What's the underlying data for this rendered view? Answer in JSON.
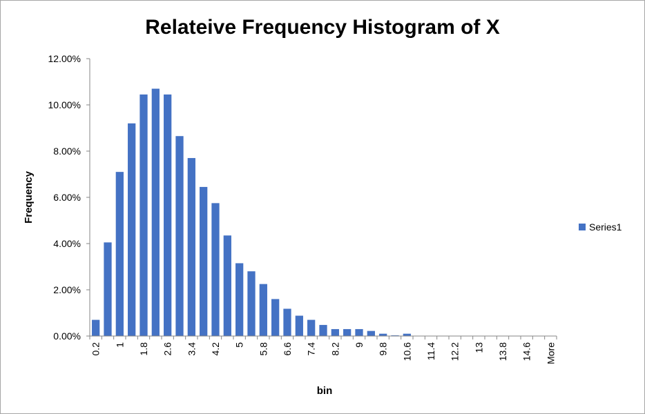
{
  "chart_data": {
    "type": "bar",
    "title": "Relateive Frequency Histogram of X",
    "xlabel": "bin",
    "ylabel": "Frequency",
    "ylim": [
      0,
      0.12
    ],
    "y_ticks": [
      "0.00%",
      "2.00%",
      "4.00%",
      "6.00%",
      "8.00%",
      "10.00%",
      "12.00%"
    ],
    "grid": false,
    "legend_position": "right",
    "bar_color": "#4472C4",
    "categories": [
      "0.2",
      "0.6",
      "1",
      "1.4",
      "1.8",
      "2.2",
      "2.6",
      "3",
      "3.4",
      "3.8",
      "4.2",
      "4.6",
      "5",
      "5.4",
      "5.8",
      "6.2",
      "6.6",
      "7",
      "7.4",
      "7.8",
      "8.2",
      "8.6",
      "9",
      "9.4",
      "9.8",
      "10.2",
      "10.6",
      "11",
      "11.4",
      "11.8",
      "12.2",
      "12.6",
      "13",
      "13.4",
      "13.8",
      "14.2",
      "14.6",
      "15",
      "More"
    ],
    "visible_x_labels": [
      "0.2",
      "1",
      "1.8",
      "2.6",
      "3.4",
      "4.2",
      "5",
      "5.8",
      "6.6",
      "7.4",
      "8.2",
      "9",
      "9.8",
      "10.6",
      "11.4",
      "12.2",
      "13",
      "13.8",
      "14.6",
      "More"
    ],
    "series": [
      {
        "name": "Series1",
        "values": [
          0.007,
          0.0405,
          0.071,
          0.092,
          0.1045,
          0.107,
          0.1045,
          0.0865,
          0.077,
          0.0645,
          0.0575,
          0.0435,
          0.0315,
          0.028,
          0.0225,
          0.016,
          0.0118,
          0.0088,
          0.007,
          0.0048,
          0.003,
          0.003,
          0.003,
          0.0022,
          0.001,
          0.0003,
          0.001,
          0,
          0,
          0,
          0,
          0,
          0,
          0,
          0,
          0,
          0,
          0,
          0
        ]
      }
    ]
  }
}
